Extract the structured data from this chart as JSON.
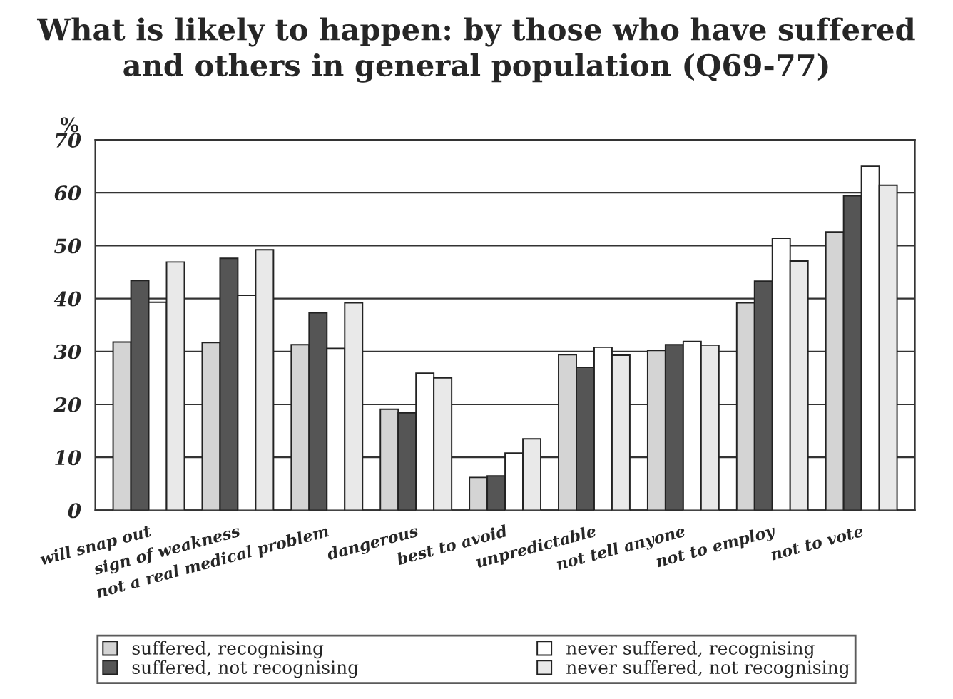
{
  "chart_data": {
    "type": "bar",
    "title": "What is likely to happen: by those who have suffered\nand others in general population (Q69-77)",
    "ylabel": "%",
    "categories": [
      "will snap out",
      "sign of weakness",
      "not a real medical problem",
      "dangerous",
      "best to avoid",
      "unpredictable",
      "not tell anyone",
      "not to employ",
      "not to vote"
    ],
    "series": [
      {
        "name": "suffered, recognising",
        "color": "#d4d4d4",
        "values": [
          31.8,
          31.7,
          31.3,
          19.1,
          6.2,
          29.4,
          30.2,
          39.2,
          52.6
        ]
      },
      {
        "name": "suffered, not recognising",
        "color": "#555555",
        "values": [
          43.4,
          47.6,
          37.3,
          18.4,
          6.5,
          27.0,
          31.3,
          43.3,
          59.4
        ]
      },
      {
        "name": "never suffered, recognising",
        "color": "#ffffff",
        "values": [
          39.3,
          40.6,
          30.6,
          25.9,
          10.8,
          30.8,
          31.9,
          51.4,
          65.0
        ]
      },
      {
        "name": "never suffered, not recognising",
        "color": "#e9e9e9",
        "values": [
          46.9,
          49.2,
          39.2,
          25.0,
          13.5,
          29.3,
          31.2,
          47.1,
          61.4
        ]
      }
    ],
    "ylim": [
      0,
      70
    ],
    "yticks": [
      0,
      10,
      20,
      30,
      40,
      50,
      60,
      70
    ],
    "grid": "y",
    "legend": "bottom"
  }
}
